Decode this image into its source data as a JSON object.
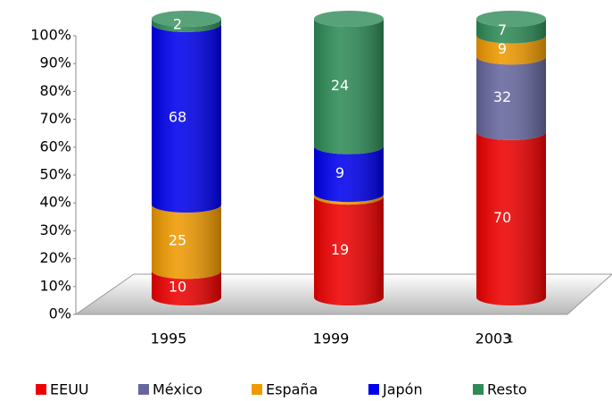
{
  "chart_data": {
    "type": "bar",
    "stacked_percent": true,
    "categories": [
      "1995",
      "1999",
      "2003"
    ],
    "series": [
      {
        "name": "EEUU",
        "color": "#ee0000",
        "values": [
          10,
          19,
          70
        ],
        "value_labels": [
          "10",
          "19",
          "70"
        ]
      },
      {
        "name": "México",
        "color": "#66679e",
        "values": [
          0,
          0,
          32
        ],
        "value_labels": [
          null,
          null,
          "32"
        ]
      },
      {
        "name": "España",
        "color": "#f09a00",
        "values": [
          25,
          0.5,
          9
        ],
        "value_labels": [
          "25",
          null,
          "9"
        ]
      },
      {
        "name": "Japón",
        "color": "#0000ee",
        "values": [
          68,
          9,
          0
        ],
        "value_labels": [
          "68",
          "9",
          null
        ]
      },
      {
        "name": "Resto",
        "color": "#2e8b57",
        "values": [
          2,
          24,
          7
        ],
        "value_labels": [
          "2",
          "24",
          "7"
        ]
      }
    ],
    "ylim": [
      0,
      100
    ],
    "yticks": [
      {
        "value": 0,
        "label": "0%"
      },
      {
        "value": 10,
        "label": "10%"
      },
      {
        "value": 20,
        "label": "20%"
      },
      {
        "value": 30,
        "label": "30%"
      },
      {
        "value": 40,
        "label": "40%"
      },
      {
        "value": 50,
        "label": "50%"
      },
      {
        "value": 60,
        "label": "60%"
      },
      {
        "value": 70,
        "label": "70%"
      },
      {
        "value": 80,
        "label": "80%"
      },
      {
        "value": 90,
        "label": "90%"
      },
      {
        "value": 100,
        "label": "100%"
      }
    ],
    "annotations": [
      "1"
    ],
    "legend": "bottom"
  }
}
